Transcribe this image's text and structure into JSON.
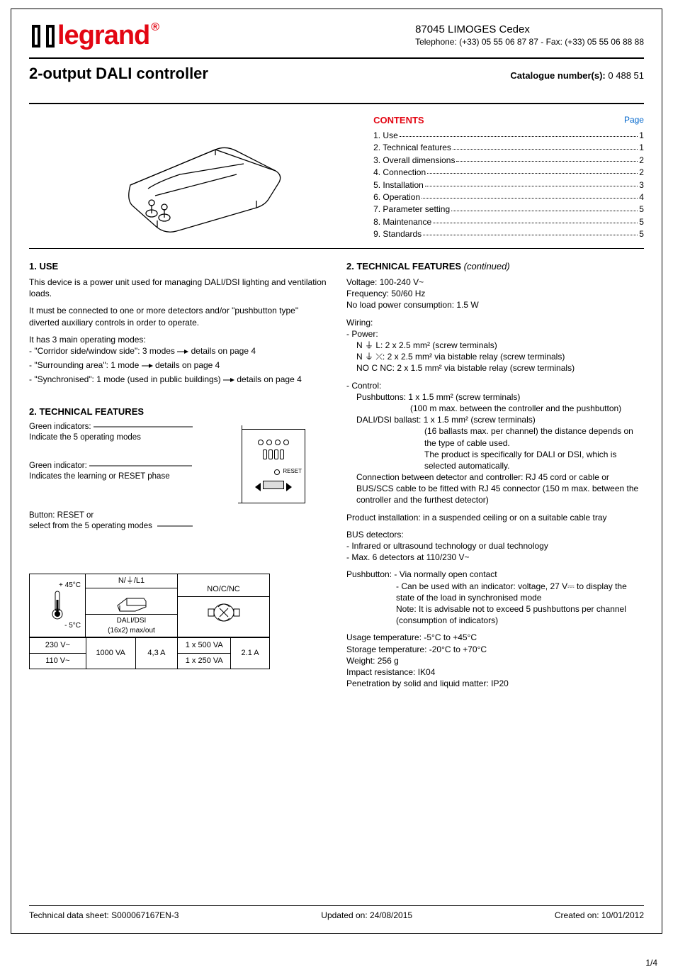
{
  "brand": {
    "name": "legrand",
    "color": "#e30613",
    "trademark": "®"
  },
  "header": {
    "address": "87045 LIMOGES Cedex",
    "phone_line": "Telephone: (+33) 05 55 06 87 87 - Fax: (+33) 05 55 06 88 88"
  },
  "title": "2-output DALI controller",
  "catalogue": {
    "label": "Catalogue number(s):",
    "value": "0 488 51"
  },
  "contents": {
    "heading": "CONTENTS",
    "page_label": "Page",
    "items": [
      {
        "label": "1. Use",
        "page": "1"
      },
      {
        "label": "2. Technical features",
        "page": "1"
      },
      {
        "label": "3. Overall dimensions",
        "page": "2"
      },
      {
        "label": "4. Connection",
        "page": "2"
      },
      {
        "label": "5. Installation",
        "page": "3"
      },
      {
        "label": "6. Operation",
        "page": "4"
      },
      {
        "label": "7. Parameter setting",
        "page": "5"
      },
      {
        "label": "8. Maintenance",
        "page": "5"
      },
      {
        "label": "9. Standards",
        "page": "5"
      }
    ]
  },
  "section1": {
    "heading": "1. USE",
    "p1": "This device is a power unit used for managing DALI/DSI lighting and ventilation loads.",
    "p2": "It must be connected to one or more detectors and/or \"pushbutton type\" diverted auxiliary controls in order to operate.",
    "p3": "It has 3 main operating modes:",
    "m1a": "- \"Corridor side/window side\": 3 modes ",
    "m1b": " details on page 4",
    "m2a": "- \"Surrounding area\": 1 mode ",
    "m2b": " details on page 4",
    "m3a": "- \"Synchronised\": 1 mode (used in public buildings) ",
    "m3b": " details on  page 4"
  },
  "section2left": {
    "heading": "2. TECHNICAL FEATURES",
    "label1a": "Green indicators:",
    "label1b": "Indicate the 5 operating modes",
    "label2a": "Green indicator:",
    "label2b": "Indicates the learning or RESET phase",
    "label3a": "Button: RESET or",
    "label3b": "select from the 5 operating modes",
    "reset_text": "RESET"
  },
  "rating": {
    "temp_hi": "+ 45°C",
    "temp_lo": "- 5°C",
    "hdr1": "N/⏚/L1",
    "hdr1_sub": "DALI/DSI\n(16x2) max/out",
    "hdr2": "NO/C/NC",
    "rows": [
      [
        "230 V~",
        "1000 VA",
        "4,3 A",
        "1 x 500 VA",
        "2.1 A"
      ],
      [
        "110 V~",
        null,
        null,
        "1 x 250 VA",
        null
      ]
    ]
  },
  "section2right": {
    "heading": "2. TECHNICAL FEATURES",
    "continued": "(continued)",
    "lines": [
      "Voltage: 100-240 V~",
      "Frequency: 50/60 Hz",
      "No load power consumption: 1.5 W"
    ],
    "wiring_head": "Wiring:",
    "wiring_power_head": "- Power:",
    "wiring_power": [
      "N ⏚ L: 2 x 2.5 mm² (screw terminals)",
      "N ⏚ ⤫: 2 x 2.5 mm² via bistable relay (screw terminals)",
      "NO C NC: 2 x 1.5 mm² via bistable relay (screw terminals)"
    ],
    "wiring_control_head": "- Control:",
    "wiring_control": [
      "Pushbuttons: 1 x 1.5 mm² (screw terminals)",
      "(100 m max. between the controller and the pushbutton)",
      "DALI/DSI ballast: 1 x 1.5 mm² (screw terminals)",
      "(16 ballasts max. per channel) the distance depends on the type of cable used.",
      "The product is specifically for DALI or DSI, which is selected automatically."
    ],
    "conn_detector": "Connection between detector and controller: RJ 45 cord or cable or BUS/SCS cable to be fitted with RJ 45 connector (150 m max. between the controller and the furthest detector)",
    "install": "Product installation: in a suspended ceiling or on a suitable cable tray",
    "bus_head": "BUS detectors:",
    "bus": [
      "- Infrared or ultrasound technology or dual technology",
      "- Max. 6 detectors at 110/230 V~"
    ],
    "push_head": "Pushbutton: - Via normally open contact",
    "push": [
      "- Can be used with an indicator: voltage, 27 V⎓ to display the state of the load in synchronised mode",
      "Note: It is advisable not to exceed 5 pushbuttons per channel (consumption of indicators)"
    ],
    "misc": [
      "Usage temperature: -5°C to +45°C",
      "Storage temperature: -20°C to +70°C",
      "Weight: 256 g",
      "Impact resistance: IK04",
      "Penetration by solid and liquid matter: IP20"
    ]
  },
  "footer": {
    "left": "Technical data sheet: S000067167EN-3",
    "center": "Updated on: 24/08/2015",
    "right": "Created on: 10/01/2012"
  },
  "page_number": "1/4",
  "colors": {
    "brand": "#e30613",
    "link": "#0066cc",
    "text": "#000000"
  }
}
